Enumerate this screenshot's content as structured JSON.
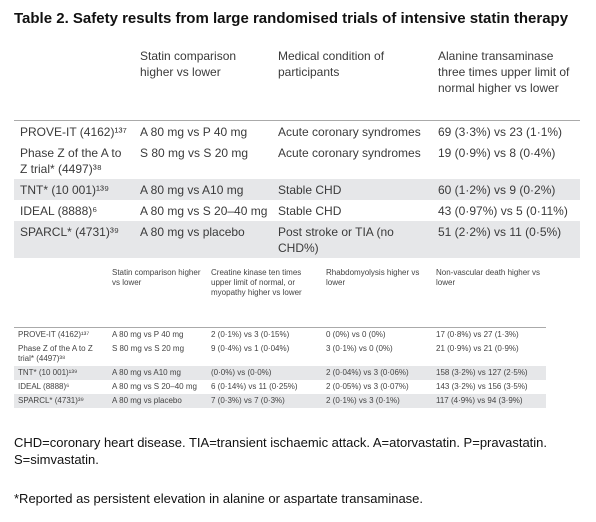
{
  "title": "Table 2. Safety results from large randomised trials of intensive statin therapy",
  "table1": {
    "headers": [
      "",
      "Statin comparison higher vs lower",
      "Medical condition of participants",
      "Alanine transaminase three times upper limit of normal higher vs lower"
    ],
    "rows": [
      [
        "PROVE-IT (4162)¹³⁷",
        "A 80 mg vs P 40 mg",
        "Acute coronary syndromes",
        "69 (3·3%) vs 23 (1·1%)"
      ],
      [
        "Phase Z of the A to Z trial* (4497)³⁸",
        "S 80 mg vs S 20 mg",
        "Acute coronary syndromes",
        "19 (0·9%) vs 8 (0·4%)"
      ],
      [
        "TNT* (10 001)¹³⁹",
        "A 80 mg vs A10 mg",
        "Stable CHD",
        "60 (1·2%) vs 9 (0·2%)"
      ],
      [
        "IDEAL (8888)⁶",
        "A 80 mg vs S 20–40 mg",
        "Stable CHD",
        "43 (0·97%) vs 5 (0·11%)"
      ],
      [
        "SPARCL* (4731)³⁹",
        "A 80 mg vs placebo",
        "Post stroke or TIA (no CHD%)",
        "51 (2·2%) vs 11 (0·5%)"
      ]
    ]
  },
  "table2": {
    "headers": [
      "",
      "Statin comparison higher vs lower",
      "Creatine kinase ten times upper limit of normal, or myopathy higher vs lower",
      "Rhabdomyolysis higher vs lower",
      "Non-vascular death higher vs lower"
    ],
    "rows": [
      [
        "PROVE-IT (4162)¹³⁷",
        "A 80 mg vs P 40 mg",
        "2 (0·1%) vs 3 (0·15%)",
        "0 (0%) vs 0 (0%)",
        "17 (0·8%) vs 27 (1·3%)"
      ],
      [
        "Phase Z of the A to Z trial* (4497)³⁸",
        "S 80 mg vs S 20 mg",
        "9 (0·4%) vs 1 (0·04%)",
        "3 (0·1%) vs 0 (0%)",
        "21 (0·9%) vs 21 (0·9%)"
      ],
      [
        "TNT* (10 001)¹³⁹",
        "A 80 mg vs A10 mg",
        "(0·0%) vs (0·0%)",
        "2 (0·04%) vs 3 (0·06%)",
        "158 (3·2%) vs 127 (2·5%)"
      ],
      [
        "IDEAL (8888)⁶",
        "A 80 mg vs S 20–40 mg",
        "6 (0·14%) vs 11 (0·25%)",
        "2 (0·05%) vs 3 (0·07%)",
        "143 (3·2%) vs 156 (3·5%)"
      ],
      [
        "SPARCL* (4731)³⁹",
        "A 80 mg vs placebo",
        "7 (0·3%) vs 7 (0·3%)",
        "2 (0·1%) vs 3 (0·1%)",
        "117 (4·9%) vs 94 (3·9%)"
      ]
    ]
  },
  "footnotes": [
    "CHD=coronary heart disease. TIA=transient ischaemic attack. A=atorvastatin. P=pravastatin. S=simvastatin.",
    "*Reported as persistent elevation in alanine or aspartate transaminase."
  ]
}
